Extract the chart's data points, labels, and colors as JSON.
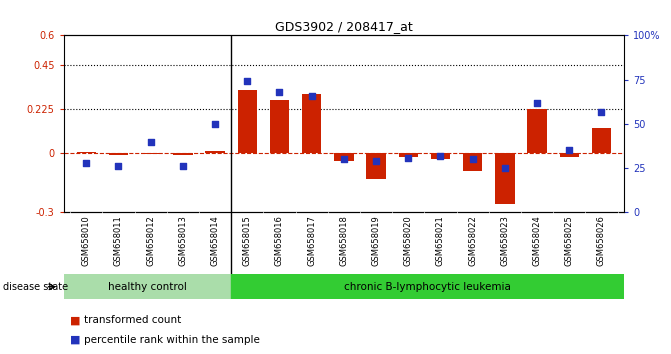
{
  "title": "GDS3902 / 208417_at",
  "samples": [
    "GSM658010",
    "GSM658011",
    "GSM658012",
    "GSM658013",
    "GSM658014",
    "GSM658015",
    "GSM658016",
    "GSM658017",
    "GSM658018",
    "GSM658019",
    "GSM658020",
    "GSM658021",
    "GSM658022",
    "GSM658023",
    "GSM658024",
    "GSM658025",
    "GSM658026"
  ],
  "transformed_count": [
    0.005,
    -0.01,
    -0.005,
    -0.01,
    0.01,
    0.32,
    0.27,
    0.3,
    -0.04,
    -0.13,
    -0.02,
    -0.03,
    -0.09,
    -0.255,
    0.225,
    -0.02,
    0.13
  ],
  "percentile_rank": [
    28,
    26,
    40,
    26,
    50,
    74,
    68,
    66,
    30,
    29,
    31,
    32,
    30,
    25,
    62,
    35,
    57
  ],
  "healthy_control_count": 5,
  "ylim_left": [
    -0.3,
    0.6
  ],
  "ylim_right": [
    0,
    100
  ],
  "yticks_left": [
    -0.3,
    0.0,
    0.225,
    0.45,
    0.6
  ],
  "ytick_labels_left": [
    "-0.3",
    "0",
    "0.225",
    "0.45",
    "0.6"
  ],
  "yticks_right": [
    0,
    25,
    50,
    75,
    100
  ],
  "ytick_labels_right": [
    "0",
    "25",
    "50",
    "75",
    "100%"
  ],
  "hline_values": [
    0.225,
    0.45
  ],
  "bar_color": "#CC2200",
  "dot_color": "#2233BB",
  "dashed_line_color": "#CC2200",
  "healthy_bg": "#AADDAA",
  "leukemia_bg": "#33CC33",
  "xtick_bg": "#CCCCCC",
  "disease_state_label": "disease state",
  "healthy_label": "healthy control",
  "leukemia_label": "chronic B-lymphocytic leukemia",
  "legend_bar_label": "transformed count",
  "legend_dot_label": "percentile rank within the sample"
}
